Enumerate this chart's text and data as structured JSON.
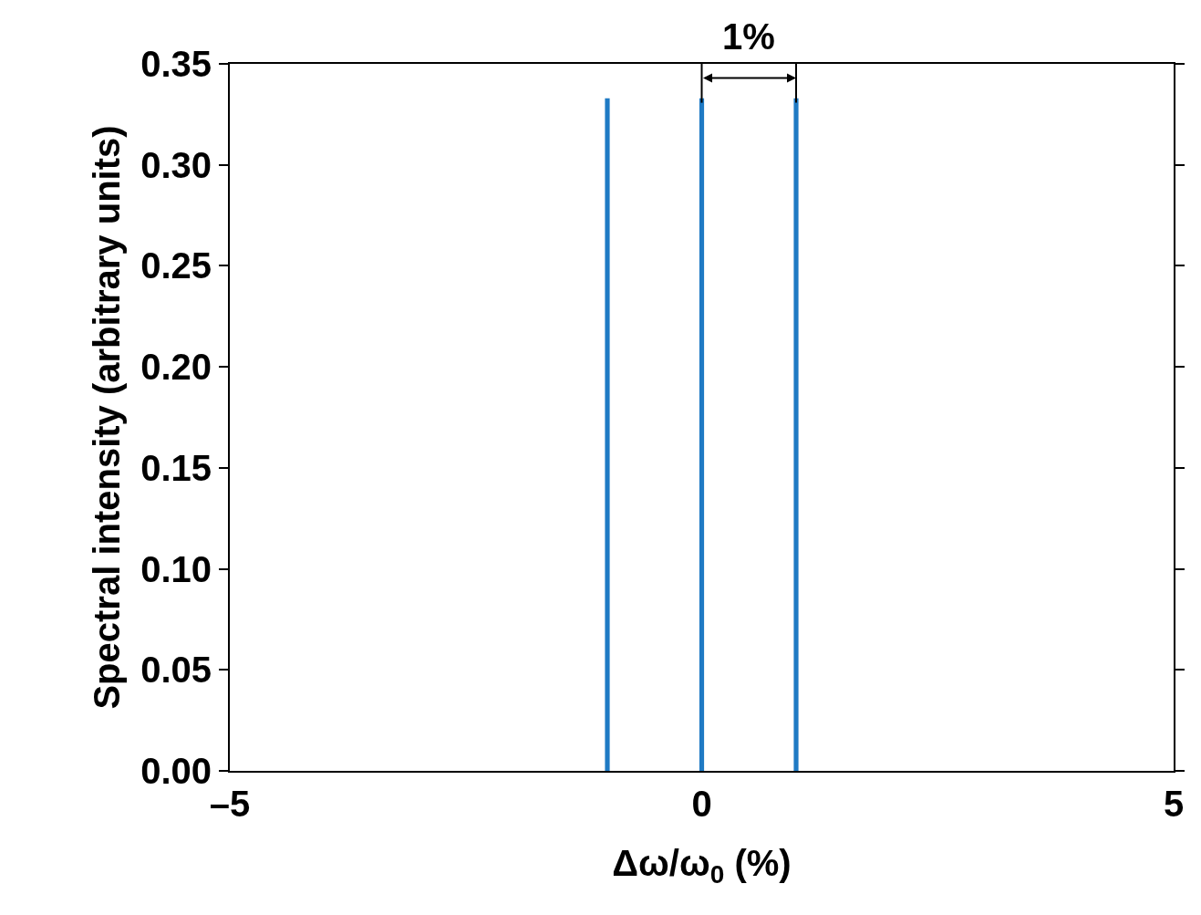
{
  "chart_data": {
    "type": "bar",
    "xlabel": "Δω/ω$_{0}$ (%)",
    "ylabel": "Spectral intensity (arbitrary units)",
    "x": [
      -1,
      0,
      1
    ],
    "values": [
      0.333,
      0.333,
      0.333
    ],
    "color": "#1f7ac4",
    "xlim": [
      -5,
      5
    ],
    "xticks": [
      {
        "value": -5,
        "label": "–5"
      },
      0,
      5
    ],
    "ylim": [
      0,
      0.35
    ],
    "yticks": [
      {
        "value": 0,
        "label": "0.00"
      },
      {
        "value": 0.05,
        "label": "0.05"
      },
      {
        "value": 0.1,
        "label": "0.10"
      },
      {
        "value": 0.15,
        "label": "0.15"
      },
      {
        "value": 0.2,
        "label": "0.20"
      },
      {
        "value": 0.25,
        "label": "0.25"
      },
      {
        "value": 0.3,
        "label": "0.30"
      },
      {
        "value": 0.35,
        "label": "0.35"
      }
    ],
    "annotations": [
      "1%"
    ]
  }
}
